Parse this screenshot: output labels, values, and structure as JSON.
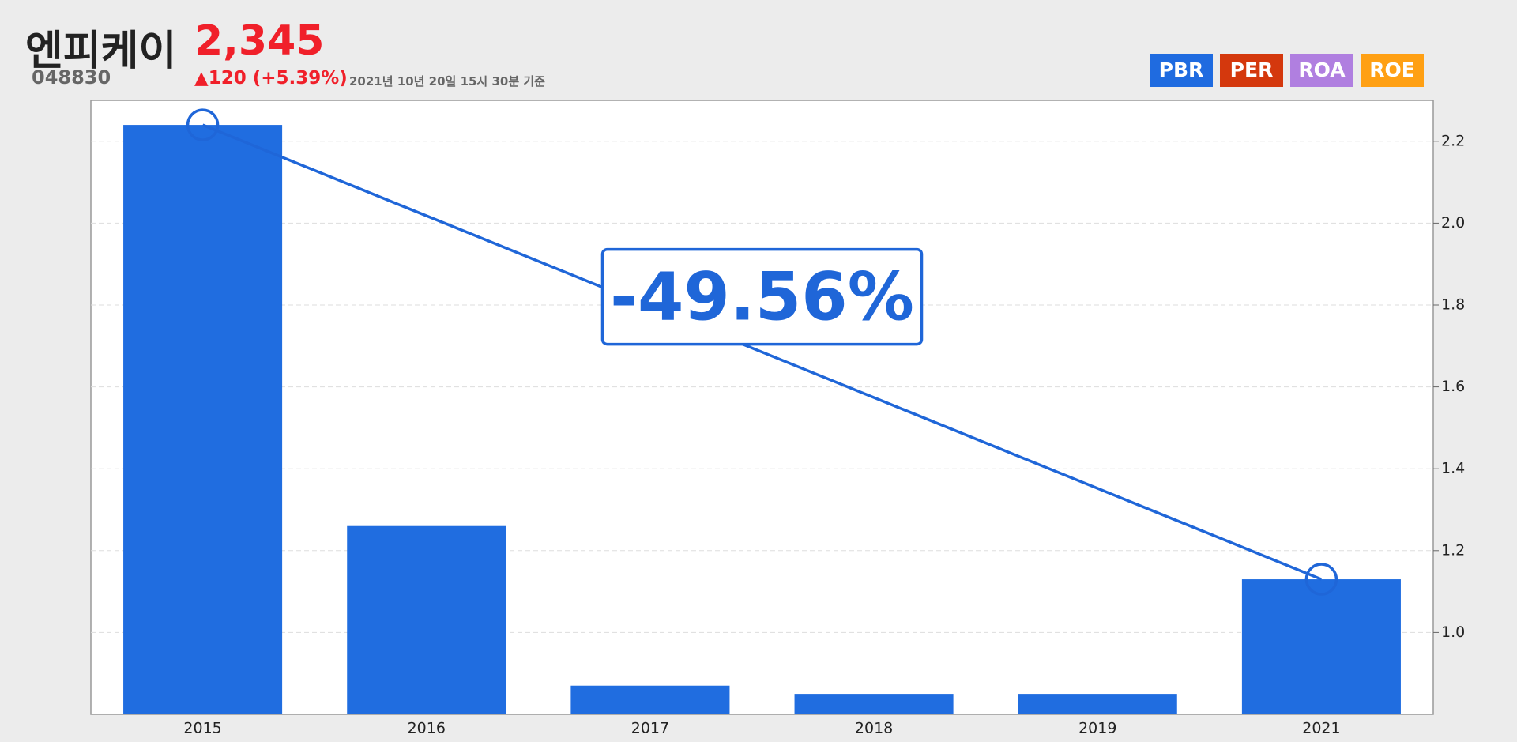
{
  "header": {
    "name": "엔피케이",
    "price": "2,345",
    "code": "048830",
    "change": "▲120 (+5.39%)",
    "date": "2021년 10년 20일 15시 30분 기준"
  },
  "buttons": [
    {
      "label": "PBR",
      "color": "#1f6be0"
    },
    {
      "label": "PER",
      "color": "#d4380d"
    },
    {
      "label": "ROA",
      "color": "#b07fe0"
    },
    {
      "label": "ROE",
      "color": "#ffa014"
    }
  ],
  "chart_data": {
    "type": "bar",
    "categories": [
      "2015",
      "2016",
      "2017",
      "2018",
      "2019",
      "2021"
    ],
    "values": [
      2.24,
      1.26,
      0.87,
      0.85,
      0.85,
      1.13
    ],
    "color": "#206de0",
    "ylim": [
      0.8,
      2.3
    ],
    "yticks": [
      {
        "value": 1,
        "label": "1.0"
      },
      1.2,
      1.4,
      1.6,
      1.8,
      {
        "value": 2,
        "label": "2.0"
      },
      2.2
    ],
    "grid": true,
    "annotation": "-49.56%"
  }
}
